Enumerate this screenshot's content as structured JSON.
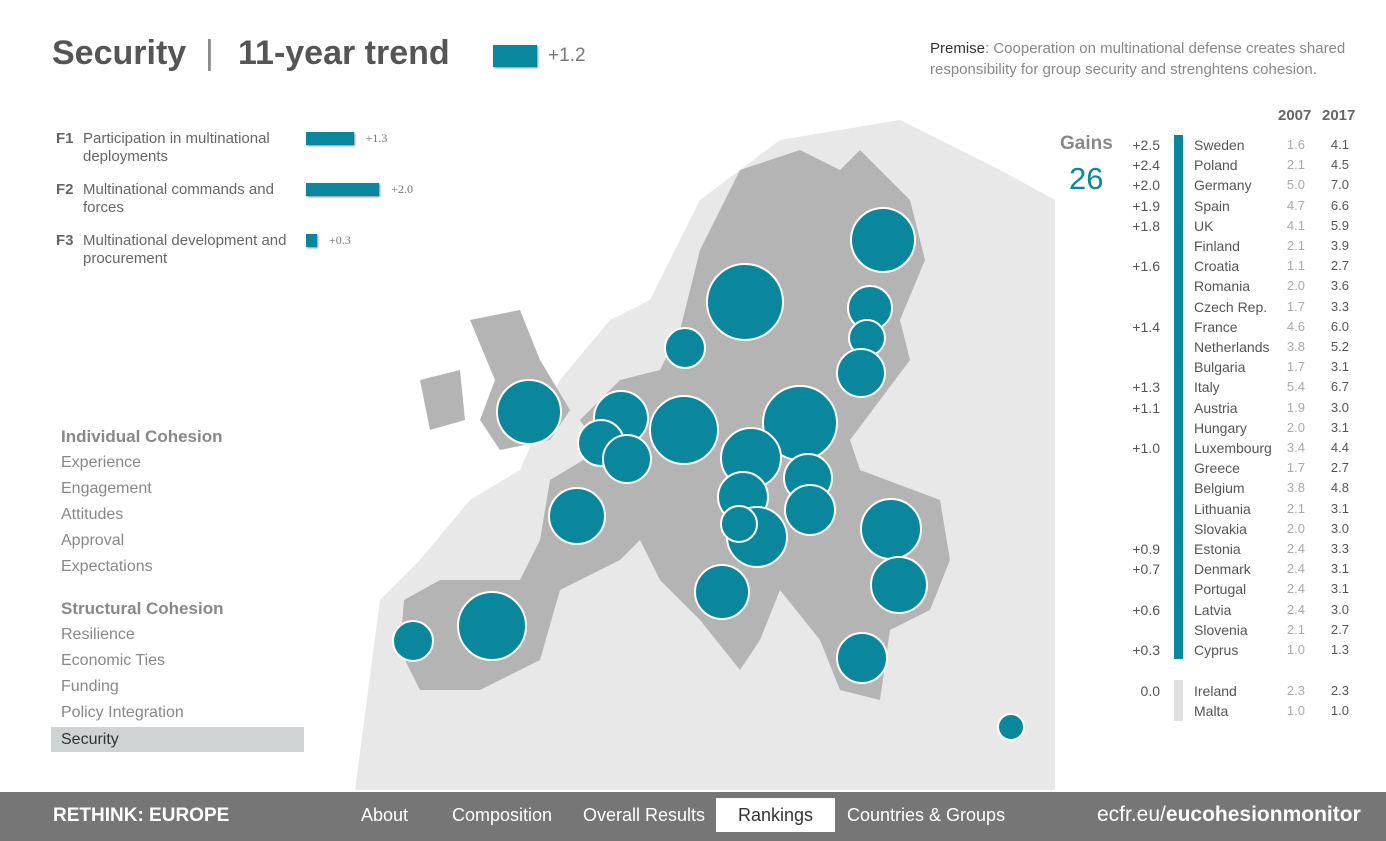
{
  "header": {
    "title": "Security",
    "separator": "|",
    "subtitle": "11-year trend",
    "trend": {
      "value": 1.2,
      "label": "+1.2"
    }
  },
  "premise": {
    "label": "Premise",
    "text": ": Cooperation on multinational defense creates shared responsibility for group security and strenghtens cohesion."
  },
  "factors": [
    {
      "code": "F1",
      "label": "Participation in multinational deployments",
      "value": 1.3,
      "value_label": "+1.3"
    },
    {
      "code": "F2",
      "label": "Multinational commands and forces",
      "value": 2.0,
      "value_label": "+2.0"
    },
    {
      "code": "F3",
      "label": "Multinational development and procurement",
      "value": 0.3,
      "value_label": "+0.3"
    }
  ],
  "menu": [
    {
      "heading": "Individual Cohesion",
      "items": [
        "Experience",
        "Engagement",
        "Attitudes",
        "Approval",
        "Expectations"
      ]
    },
    {
      "heading": "Structural Cohesion",
      "items": [
        "Resilience",
        "Economic Ties",
        "Funding",
        "Policy Integration",
        "Security"
      ]
    }
  ],
  "table": {
    "gains_label": "Gains",
    "gains_count": "26",
    "columns": [
      "2007",
      "2017"
    ],
    "gainers": [
      {
        "gain": "+2.5",
        "name": "Sweden",
        "v2007": "1.6",
        "v2017": "4.1"
      },
      {
        "gain": "+2.4",
        "name": "Poland",
        "v2007": "2.1",
        "v2017": "4.5"
      },
      {
        "gain": "+2.0",
        "name": "Germany",
        "v2007": "5.0",
        "v2017": "7.0"
      },
      {
        "gain": "+1.9",
        "name": "Spain",
        "v2007": "4.7",
        "v2017": "6.6"
      },
      {
        "gain": "+1.8",
        "name": "UK",
        "v2007": "4.1",
        "v2017": "5.9"
      },
      {
        "name": "Finland",
        "v2007": "2.1",
        "v2017": "3.9"
      },
      {
        "gain": "+1.6",
        "name": "Croatia",
        "v2007": "1.1",
        "v2017": "2.7"
      },
      {
        "name": "Romania",
        "v2007": "2.0",
        "v2017": "3.6"
      },
      {
        "name": "Czech Rep.",
        "v2007": "1.7",
        "v2017": "3.3"
      },
      {
        "gain": "+1.4",
        "name": "France",
        "v2007": "4.6",
        "v2017": "6.0"
      },
      {
        "name": "Netherlands",
        "v2007": "3.8",
        "v2017": "5.2"
      },
      {
        "name": "Bulgaria",
        "v2007": "1.7",
        "v2017": "3.1"
      },
      {
        "gain": "+1.3",
        "name": "Italy",
        "v2007": "5.4",
        "v2017": "6.7"
      },
      {
        "gain": "+1.1",
        "name": "Austria",
        "v2007": "1.9",
        "v2017": "3.0"
      },
      {
        "name": "Hungary",
        "v2007": "2.0",
        "v2017": "3.1"
      },
      {
        "gain": "+1.0",
        "name": "Luxembourg",
        "v2007": "3.4",
        "v2017": "4.4"
      },
      {
        "name": "Greece",
        "v2007": "1.7",
        "v2017": "2.7"
      },
      {
        "name": "Belgium",
        "v2007": "3.8",
        "v2017": "4.8"
      },
      {
        "name": "Lithuania",
        "v2007": "2.1",
        "v2017": "3.1"
      },
      {
        "name": "Slovakia",
        "v2007": "2.0",
        "v2017": "3.0"
      },
      {
        "gain": "+0.9",
        "name": "Estonia",
        "v2007": "2.4",
        "v2017": "3.3"
      },
      {
        "gain": "+0.7",
        "name": "Denmark",
        "v2007": "2.4",
        "v2017": "3.1"
      },
      {
        "name": "Portugal",
        "v2007": "2.4",
        "v2017": "3.1"
      },
      {
        "gain": "+0.6",
        "name": "Latvia",
        "v2007": "2.4",
        "v2017": "3.0"
      },
      {
        "name": "Slovenia",
        "v2007": "2.1",
        "v2017": "2.7"
      },
      {
        "gain": "+0.3",
        "name": "Cyprus",
        "v2007": "1.0",
        "v2017": "1.3"
      }
    ],
    "unchanged": [
      {
        "gain": "0.0",
        "name": "Ireland",
        "v2007": "2.3",
        "v2017": "2.3"
      },
      {
        "name": "Malta",
        "v2007": "1.0",
        "v2017": "1.0"
      }
    ]
  },
  "footer": {
    "brand": "RETHINK: EUROPE",
    "nav": [
      "About",
      "Composition",
      "Overall Results",
      "Rankings",
      "Countries & Groups"
    ],
    "url_prefix": "ecfr.eu/",
    "url_bold": "eucohesionmonitor"
  }
}
